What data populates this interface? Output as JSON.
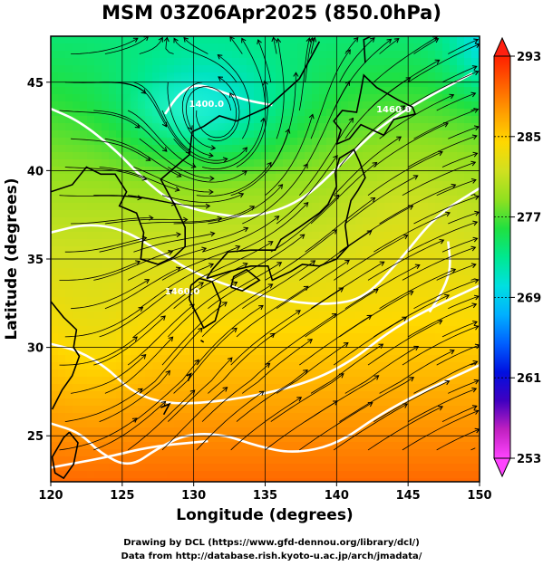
{
  "title": "MSM 03Z06Apr2025 (850.0hPa)",
  "x_axis": {
    "label": "Longitude (degrees)",
    "ticks": [
      120,
      125,
      130,
      135,
      140,
      145,
      150
    ],
    "range": [
      120,
      150
    ]
  },
  "y_axis": {
    "label": "Latitude  (degrees)",
    "ticks": [
      25,
      30,
      35,
      40,
      45
    ],
    "range": [
      22.4,
      47.6
    ]
  },
  "colorbar": {
    "ticks": [
      253,
      261,
      269,
      277,
      285,
      293
    ],
    "range": [
      253,
      293
    ],
    "colors": [
      "#ff44ff",
      "#c020c0",
      "#4000c0",
      "#0010e0",
      "#0060ff",
      "#00b0ff",
      "#00e0e0",
      "#00e890",
      "#20e040",
      "#90e020",
      "#d0e020",
      "#ffd800",
      "#ffa000",
      "#ff6000",
      "#ff2000"
    ]
  },
  "contours": {
    "color": "#ffffff",
    "labels": [
      {
        "text": "1400.0",
        "lon": 130.9,
        "lat": 43.6
      },
      {
        "text": "1460.0",
        "lon": 129.2,
        "lat": 33.0
      },
      {
        "text": "1460.0",
        "lon": 144.0,
        "lat": 43.3
      }
    ]
  },
  "credits": {
    "line1": "Drawing by DCL (https://www.gfd-dennou.org/library/dcl/)",
    "line2": "Data from http://database.rish.kyoto-u.ac.jp/arch/jmadata/"
  }
}
